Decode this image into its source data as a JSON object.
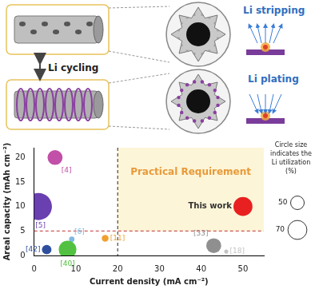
{
  "diagram": {
    "labels": {
      "cycling": "Li cycling",
      "stripping": "Li stripping",
      "plating": "Li plating"
    }
  },
  "chart_data": {
    "type": "bubble",
    "xlabel": "Current density (mA cm⁻²)",
    "ylabel": "Areal capacity (mAh cm⁻²)",
    "xlim": [
      0,
      55
    ],
    "xticks": [
      0,
      10,
      20,
      30,
      40,
      50
    ],
    "ylim": [
      0,
      22
    ],
    "yticks": [
      0,
      5,
      10,
      15,
      20
    ],
    "grid": false,
    "series": [
      {
        "name": "[4]",
        "color": "#c24fa8",
        "x": [
          5
        ],
        "values": [
          20
        ],
        "utilization": [
          55
        ]
      },
      {
        "name": "[5]",
        "color": "#6a3fb0",
        "x": [
          1
        ],
        "values": [
          10
        ],
        "utilization": [
          100
        ]
      },
      {
        "name": "[42]",
        "color": "#2f4f9e",
        "x": [
          3
        ],
        "values": [
          1.2
        ],
        "utilization": [
          35
        ]
      },
      {
        "name": "[40]",
        "color": "#52c141",
        "x": [
          8
        ],
        "values": [
          1.2
        ],
        "utilization": [
          65
        ]
      },
      {
        "name": "[6]",
        "color": "#7fb8e0",
        "x": [
          9
        ],
        "values": [
          3.3
        ],
        "utilization": [
          20
        ]
      },
      {
        "name": "[11]",
        "color": "#f0a030",
        "x": [
          17
        ],
        "values": [
          3.5
        ],
        "utilization": [
          25
        ]
      },
      {
        "name": "[33]",
        "color": "#8f8f8f",
        "x": [
          43
        ],
        "values": [
          2
        ],
        "utilization": [
          55
        ]
      },
      {
        "name": "[18]",
        "color": "#c4c4c4",
        "x": [
          46
        ],
        "values": [
          0.8
        ],
        "utilization": [
          15
        ]
      },
      {
        "name": "This work",
        "color": "#e82020",
        "x": [
          50
        ],
        "values": [
          10
        ],
        "utilization": [
          70
        ]
      }
    ],
    "annotations": {
      "region": "Practical Requirement",
      "x_threshold": 20,
      "y_threshold": 5
    },
    "size_legend": {
      "title": [
        "Circle size",
        "indicates the",
        "Li utilization",
        "(%)"
      ],
      "values": [
        50,
        70
      ]
    }
  }
}
